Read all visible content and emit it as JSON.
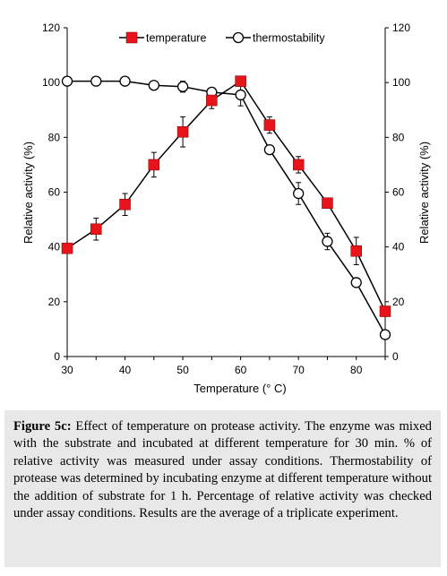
{
  "chart_data": {
    "type": "line",
    "x": [
      30,
      35,
      40,
      45,
      50,
      55,
      60,
      65,
      70,
      75,
      80,
      85
    ],
    "xlabel": "Temperature (° C)",
    "ylabel_left": "Relative activity (%)",
    "ylabel_right": "Relative activity (%)",
    "xlim": [
      30,
      85
    ],
    "ylim": [
      0,
      120
    ],
    "xticks": [
      "30",
      "40",
      "50",
      "60",
      "70",
      "80"
    ],
    "yticks": [
      "0",
      "20",
      "40",
      "60",
      "80",
      "100",
      "120"
    ],
    "legend_position": "top",
    "grid": false,
    "series": [
      {
        "name": "temperature",
        "marker": "filled-square",
        "color": "#e8141b",
        "values": [
          39.5,
          46.5,
          55.5,
          70,
          82,
          93.5,
          100.5,
          84.5,
          70,
          56,
          38.5,
          16.5
        ],
        "error": [
          0,
          4,
          4,
          4.5,
          5.5,
          3,
          0,
          3,
          3,
          0,
          5,
          0
        ]
      },
      {
        "name": "thermostability",
        "marker": "open-circle",
        "color": "#000000",
        "x": [
          30,
          35,
          40,
          45,
          50,
          55,
          60,
          65,
          70,
          75,
          80,
          85
        ],
        "values": [
          100.5,
          100.5,
          100.5,
          99,
          98.5,
          96.5,
          95.5,
          75.5,
          59.5,
          42,
          27,
          8
        ],
        "error": [
          0,
          0,
          0,
          1.5,
          2,
          1.5,
          4,
          0,
          4,
          3,
          0,
          0
        ]
      }
    ]
  },
  "caption": {
    "label": "Figure 5c:",
    "text": " Effect of temperature on protease activity. The enzyme was mixed with the substrate and incubated at different temperature for 30 min. % of relative activity was measured under assay conditions. Thermostability of protease was determined by incubating enzyme at different temperature without the addition of substrate for 1 h. Percentage of relative activity was checked under assay conditions. Results are the average of a triplicate experiment."
  }
}
